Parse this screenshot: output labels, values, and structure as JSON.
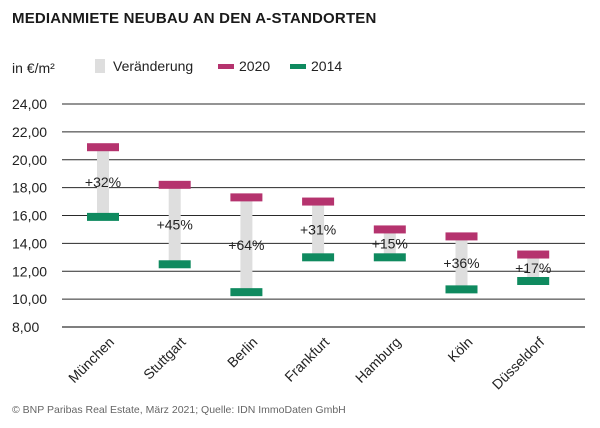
{
  "title": "MEDIANMIETE NEUBAU AN DEN A-STANDORTEN",
  "unit_label": "in €/m²",
  "legend": {
    "change": "Veränderung",
    "y2020": "2020",
    "y2014": "2014"
  },
  "colors": {
    "y2020": "#b5336e",
    "y2014": "#0f8a5f",
    "change": "#dedede"
  },
  "source": "© BNP Paribas Real Estate, März 2021; Quelle: IDN ImmoDaten GmbH",
  "chart_data": {
    "type": "range-bar",
    "title": "MEDIANMIETE NEUBAU AN DEN A-STANDORTEN",
    "ylabel": "in €/m²",
    "ylim": [
      8,
      24
    ],
    "yticks": [
      "8,00",
      "10,00",
      "12,00",
      "14,00",
      "16,00",
      "18,00",
      "20,00",
      "22,00",
      "24,00"
    ],
    "categories": [
      "München",
      "Stuttgart",
      "Berlin",
      "Frankfurt",
      "Hamburg",
      "Köln",
      "Düsseldorf"
    ],
    "series": [
      {
        "name": "2020",
        "values": [
          20.9,
          18.2,
          17.3,
          17.0,
          15.0,
          14.5,
          13.2
        ]
      },
      {
        "name": "2014",
        "values": [
          15.9,
          12.5,
          10.5,
          13.0,
          13.0,
          10.7,
          11.3
        ]
      }
    ],
    "change_labels": [
      "+32%",
      "+45%",
      "+64%",
      "+31%",
      "+15%",
      "+36%",
      "+17%"
    ],
    "grid": true
  }
}
